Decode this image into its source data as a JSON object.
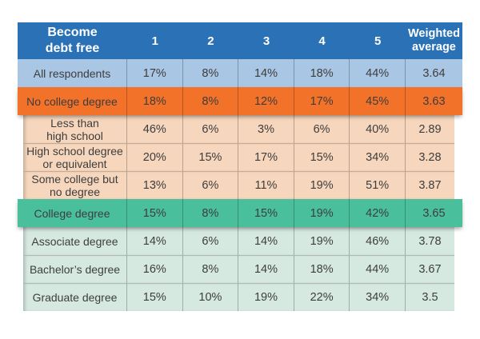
{
  "page": {
    "background": "#ffffff"
  },
  "colors": {
    "header_bg": "#2a71b5",
    "header_text": "#ffffff",
    "body_text": "#3d3d3d",
    "divider": "rgba(0,0,0,0.25)",
    "row_styles": {
      "blue": "#a9c6e4",
      "orange": "#f3722a",
      "peach": "#f6d6bc",
      "teal": "#4abf9b",
      "green": "#d6e9e1"
    }
  },
  "chart_data": {
    "type": "table",
    "title": "Become debt free",
    "columns": [
      "Become\ndebt free",
      "1",
      "2",
      "3",
      "4",
      "5",
      "Weighted\naverage"
    ],
    "rows": [
      {
        "label": "All respondents",
        "values": [
          "17%",
          "8%",
          "14%",
          "18%",
          "44%"
        ],
        "weighted_average": "3.64",
        "style": "blue",
        "full_width": true,
        "divider_top": false,
        "shadow": false
      },
      {
        "label": "No college degree",
        "values": [
          "18%",
          "8%",
          "12%",
          "17%",
          "45%"
        ],
        "weighted_average": "3.63",
        "style": "orange",
        "full_width": true,
        "divider_top": false,
        "shadow": true
      },
      {
        "label": "Less than\nhigh school",
        "values": [
          "46%",
          "6%",
          "3%",
          "6%",
          "40%"
        ],
        "weighted_average": "2.89",
        "style": "peach",
        "full_width": false,
        "divider_top": false,
        "shadow": false
      },
      {
        "label": "High school degree\nor equivalent",
        "values": [
          "20%",
          "15%",
          "17%",
          "15%",
          "34%"
        ],
        "weighted_average": "3.28",
        "style": "peach",
        "full_width": false,
        "divider_top": true,
        "shadow": false
      },
      {
        "label": "Some college but\nno degree",
        "values": [
          "13%",
          "6%",
          "11%",
          "19%",
          "51%"
        ],
        "weighted_average": "3.87",
        "style": "peach",
        "full_width": false,
        "divider_top": true,
        "shadow": false
      },
      {
        "label": "College degree",
        "values": [
          "15%",
          "8%",
          "15%",
          "19%",
          "42%"
        ],
        "weighted_average": "3.65",
        "style": "teal",
        "full_width": true,
        "divider_top": false,
        "shadow": true
      },
      {
        "label": "Associate degree",
        "values": [
          "14%",
          "6%",
          "14%",
          "19%",
          "46%"
        ],
        "weighted_average": "3.78",
        "style": "green",
        "full_width": false,
        "divider_top": false,
        "shadow": false
      },
      {
        "label": "Bachelor’s degree",
        "values": [
          "16%",
          "8%",
          "14%",
          "18%",
          "44%"
        ],
        "weighted_average": "3.67",
        "style": "green",
        "full_width": false,
        "divider_top": true,
        "shadow": false
      },
      {
        "label": "Graduate degree",
        "values": [
          "15%",
          "10%",
          "19%",
          "22%",
          "34%"
        ],
        "weighted_average": "3.5",
        "style": "green",
        "full_width": false,
        "divider_top": true,
        "shadow": true
      }
    ]
  }
}
